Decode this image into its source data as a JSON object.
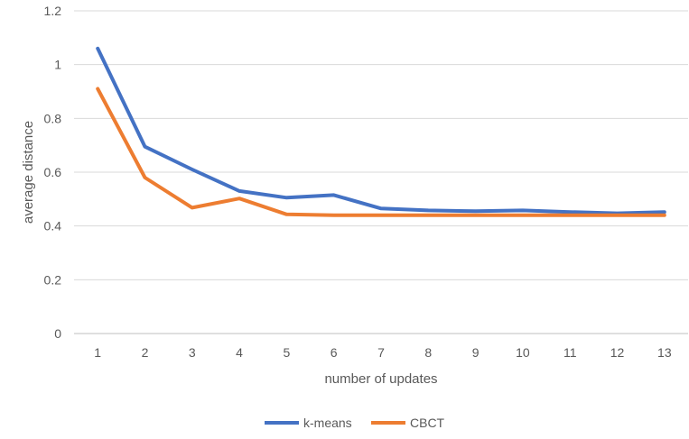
{
  "chart_data": {
    "type": "line",
    "title": "",
    "xlabel": "number of updates",
    "ylabel": "average distance",
    "x": [
      "1",
      "2",
      "3",
      "4",
      "5",
      "6",
      "7",
      "8",
      "9",
      "10",
      "11",
      "12",
      "13"
    ],
    "yticks": [
      "0",
      "0.2",
      "0.4",
      "0.6",
      "0.8",
      "1",
      "1.2"
    ],
    "ylim": [
      0,
      1.2
    ],
    "grid": true,
    "legend_position": "bottom",
    "series": [
      {
        "name": "k-means",
        "color": "#4472C4",
        "values": [
          1.06,
          0.695,
          0.61,
          0.53,
          0.505,
          0.515,
          0.465,
          0.458,
          0.455,
          0.458,
          0.452,
          0.447,
          0.452
        ]
      },
      {
        "name": "CBCT",
        "color": "#ED7D31",
        "values": [
          0.91,
          0.58,
          0.468,
          0.502,
          0.443,
          0.44,
          0.44,
          0.44,
          0.44,
          0.44,
          0.44,
          0.44,
          0.44
        ]
      }
    ]
  }
}
